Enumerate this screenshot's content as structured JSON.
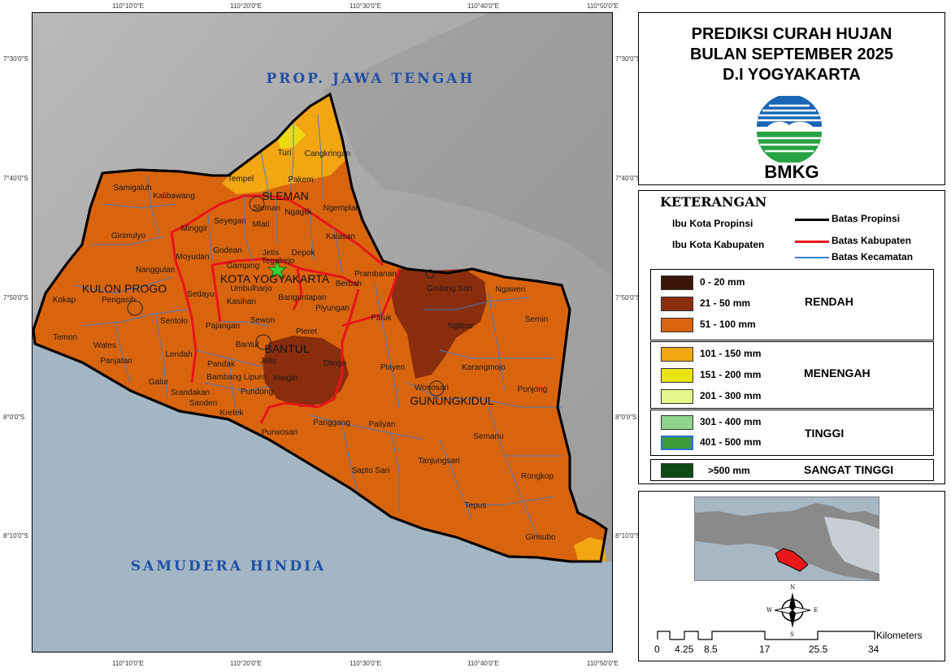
{
  "title": {
    "line1": "PREDIKSI CURAH HUJAN",
    "line2": "BULAN SEPTEMBER 2025",
    "line3": "D.I YOGYAKARTA",
    "logo_text": "BMKG"
  },
  "legend": {
    "heading": "KETERANGAN",
    "symbols": [
      {
        "label": "Ibu Kota Propinsi"
      },
      {
        "label": "Ibu Kota Kabupaten"
      }
    ],
    "lines": [
      {
        "label": "Batas Propinsi",
        "color": "#000000"
      },
      {
        "label": "Batas Kabupaten",
        "color": "#e8141b"
      },
      {
        "label": "Batas Kecamatan",
        "color": "#3a7fd5"
      }
    ],
    "groups": [
      {
        "category": "RENDAH",
        "classes": [
          {
            "label": "0 - 20 mm",
            "color": "#3b1608"
          },
          {
            "label": "21 - 50 mm",
            "color": "#8a2d0c"
          },
          {
            "label": "51 - 100 mm",
            "color": "#d9640e"
          }
        ]
      },
      {
        "category": "MENENGAH",
        "classes": [
          {
            "label": "101 - 150 mm",
            "color": "#f2a612"
          },
          {
            "label": "151 - 200 mm",
            "color": "#ebe312"
          },
          {
            "label": "201 - 300 mm",
            "color": "#e4f78c"
          }
        ]
      },
      {
        "category": "TINGGI",
        "classes": [
          {
            "label": "301 - 400 mm",
            "color": "#8fd48f"
          },
          {
            "label": "401 - 500 mm",
            "color": "#3f9c3a"
          }
        ]
      },
      {
        "category": "SANGAT TINGGI",
        "classes": [
          {
            "label": ">500 mm",
            "color": "#0b4a12"
          }
        ]
      }
    ]
  },
  "scale_bar": {
    "unit": "Kilometers",
    "ticks": [
      "0",
      "4.25",
      "8.5",
      "17",
      "25.5",
      "34"
    ]
  },
  "compass": {
    "n": "N",
    "s": "S",
    "e": "E",
    "w": "W"
  },
  "map": {
    "coords_top": [
      "110°10'0\"E",
      "110°20'0\"E",
      "110°30'0\"E",
      "110°40'0\"E",
      "110°50'0\"E"
    ],
    "coords_left": [
      "7°30'0\"S",
      "7°40'0\"S",
      "7°50'0\"S",
      "8°0'0\"S",
      "8°10'0\"S"
    ],
    "coords_right": [
      "7°30'0\"S",
      "7°40'0\"S",
      "7°50'0\"S",
      "8°0'0\"S",
      "8°10'0\"S"
    ],
    "seas": {
      "north": "PROP. JAWA TENGAH",
      "south": "SAMUDERA HINDIA"
    },
    "regencies": [
      "SLEMAN",
      "KULON PROGO",
      "KOTA YOGYAKARTA",
      "BANTUL",
      "GUNUNGKIDUL"
    ],
    "districts": [
      "Turi",
      "Cangkringan",
      "Tempel",
      "Pakem",
      "Sleman",
      "Ngaglik",
      "Ngemplak",
      "Mlati",
      "Seyegan",
      "Minggir",
      "Samigaluh",
      "Kalibawang",
      "Girimulyo",
      "Nanggulan",
      "Moyudan",
      "Godean",
      "Gamping",
      "Jetis",
      "Tegalrejo",
      "Depok",
      "Kalasan",
      "Prambanan",
      "Berbah",
      "Umbulharjo",
      "Banguntapan",
      "Piyungan",
      "Kasihan",
      "Sewon",
      "Pleret",
      "Sedayu",
      "Pajangan",
      "Bantul",
      "Pengasih",
      "Kokap",
      "Temon",
      "Wates",
      "Sentolo",
      "Panjatan",
      "Lendah",
      "Galur",
      "Pandak",
      "Jetis",
      "Imogiri",
      "Bambang Lipuro",
      "Dlingo",
      "Srandakan",
      "Sanden",
      "Pundong",
      "Kretek",
      "Gedang Sari",
      "Ngawen",
      "Patuk",
      "Nglipar",
      "Semin",
      "Playen",
      "Karangmojo",
      "Wonosari",
      "Ponjong",
      "Purwosari",
      "Panggang",
      "Paliyan",
      "Semanu",
      "Sapto Sari",
      "Tanjungsari",
      "Rongkop",
      "Tepus",
      "Girisubo"
    ]
  }
}
